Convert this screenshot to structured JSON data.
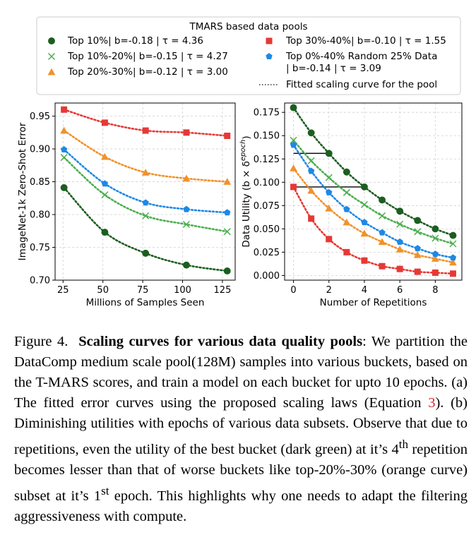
{
  "legend": {
    "title": "TMARS based data pools",
    "entries": [
      {
        "label": "Top 10%| b=-0.18 | τ = 4.36",
        "color": "#1b5e20",
        "marker": "circle"
      },
      {
        "label": "Top 10%-20%| b=-0.15 | τ = 4.27",
        "color": "#4caf50",
        "marker": "x"
      },
      {
        "label": "Top 20%-30%| b=-0.12 | τ = 3.00",
        "color": "#f0922b",
        "marker": "triangle"
      },
      {
        "label": "Top 30%-40%| b=-0.10 | τ = 1.55",
        "color": "#e53935",
        "marker": "square"
      },
      {
        "label": "Top 0%-40% Random 25% Data",
        "label2": "| b=-0.14 | τ = 3.09",
        "color": "#1e88e5",
        "marker": "pentagon"
      },
      {
        "label": "Fitted scaling curve for the pool",
        "color": "#333333",
        "marker": "dotted"
      }
    ]
  },
  "chart_data": [
    {
      "type": "line",
      "xlabel": "Millions of Samples Seen",
      "ylabel": "ImageNet-1k Zero-Shot Error",
      "xlim": [
        20,
        133
      ],
      "ylim": [
        0.7,
        0.97
      ],
      "xticks": [
        25,
        50,
        75,
        100,
        125
      ],
      "yticks": [
        0.7,
        0.75,
        0.8,
        0.85,
        0.9,
        0.95
      ],
      "grid": true,
      "x": [
        25.6,
        51.2,
        76.8,
        102.4,
        128
      ],
      "series": [
        {
          "name": "Top 10%",
          "color": "#1b5e20",
          "marker": "circle",
          "values": [
            0.841,
            0.773,
            0.741,
            0.723,
            0.714
          ]
        },
        {
          "name": "Top 10%-20%",
          "color": "#4caf50",
          "marker": "x",
          "values": [
            0.887,
            0.83,
            0.798,
            0.785,
            0.774
          ]
        },
        {
          "name": "Top 20%-30%",
          "color": "#f0922b",
          "marker": "triangle",
          "values": [
            0.928,
            0.888,
            0.864,
            0.855,
            0.85
          ]
        },
        {
          "name": "Top 30%-40%",
          "color": "#e53935",
          "marker": "square",
          "values": [
            0.96,
            0.94,
            0.928,
            0.925,
            0.92
          ]
        },
        {
          "name": "Top 0%-40% Random 25% Data",
          "color": "#1e88e5",
          "marker": "pentagon",
          "values": [
            0.899,
            0.847,
            0.818,
            0.808,
            0.803
          ]
        }
      ]
    },
    {
      "type": "line",
      "xlabel": "Number of Repetitions",
      "ylabel": "Data Utility (b × δ",
      "ylabel_sup": "epoch",
      "ylabel_end": ")",
      "xlim": [
        -0.5,
        9.5
      ],
      "ylim": [
        -0.005,
        0.185
      ],
      "xticks": [
        0,
        2,
        4,
        6,
        8
      ],
      "yticks": [
        0.0,
        0.025,
        0.05,
        0.075,
        0.1,
        0.125,
        0.15,
        0.175
      ],
      "grid": true,
      "x": [
        0,
        1,
        2,
        3,
        4,
        5,
        6,
        7,
        8,
        9
      ],
      "series": [
        {
          "name": "Top 10%",
          "color": "#1b5e20",
          "marker": "circle",
          "values": [
            0.18,
            0.153,
            0.131,
            0.111,
            0.095,
            0.081,
            0.069,
            0.059,
            0.05,
            0.043
          ]
        },
        {
          "name": "Top 10%-20%",
          "color": "#4caf50",
          "marker": "x",
          "values": [
            0.145,
            0.123,
            0.105,
            0.089,
            0.076,
            0.064,
            0.055,
            0.047,
            0.04,
            0.034
          ]
        },
        {
          "name": "Top 20%-30%",
          "color": "#f0922b",
          "marker": "triangle",
          "values": [
            0.115,
            0.091,
            0.072,
            0.057,
            0.045,
            0.036,
            0.028,
            0.022,
            0.018,
            0.014
          ]
        },
        {
          "name": "Top 30%-40%",
          "color": "#e53935",
          "marker": "square",
          "values": [
            0.095,
            0.061,
            0.039,
            0.025,
            0.016,
            0.01,
            0.007,
            0.004,
            0.003,
            0.002
          ]
        },
        {
          "name": "Top 0%-40% Random 25% Data",
          "color": "#1e88e5",
          "marker": "pentagon",
          "values": [
            0.14,
            0.112,
            0.089,
            0.071,
            0.057,
            0.046,
            0.036,
            0.029,
            0.023,
            0.019
          ]
        }
      ],
      "reference_lines": [
        {
          "y": 0.131,
          "x_from": 0,
          "x_to": 2
        },
        {
          "y": 0.095,
          "x_from": 0,
          "x_to": 4
        }
      ]
    }
  ],
  "caption": {
    "label": "Figure 4.",
    "bold_title": "Scaling curves for various data quality pools",
    "text1": ": We partition the DataComp medium scale pool(128M) samples into various buckets, based on the T-MARS scores, and train a model on each bucket for upto 10 epochs. (a) The fitted error curves using the proposed scaling laws (Equation ",
    "eq_ref": "3",
    "text2": "). (b) Diminishing utilities with epochs of various data subsets. Observe that due to repetitions, even the utility of the best bucket (dark green) at it’s 4",
    "sup1": "th",
    "text3": " repetition becomes lesser than that of worse buckets like top-20%-30% (orange curve) subset at it’s 1",
    "sup2": "st",
    "text4": " epoch. This highlights why one needs to adapt the filtering aggressiveness with compute."
  }
}
